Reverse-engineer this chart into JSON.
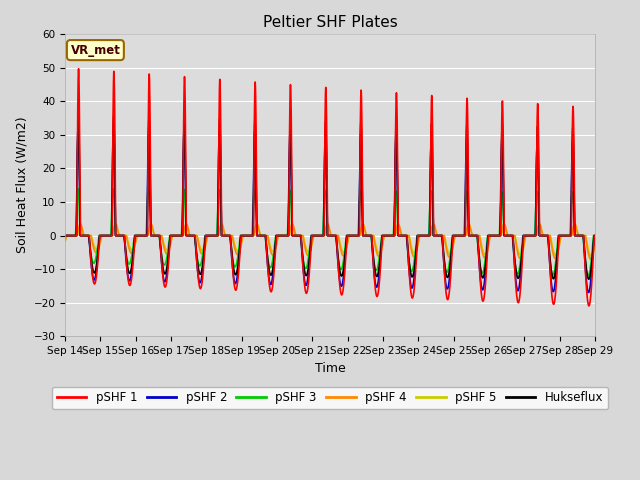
{
  "title": "Peltier SHF Plates",
  "xlabel": "Time",
  "ylabel": "Soil Heat Flux (W/m2)",
  "ylim": [
    -30,
    60
  ],
  "x_tick_labels": [
    "Sep 14",
    "Sep 15",
    "Sep 16",
    "Sep 17",
    "Sep 18",
    "Sep 19",
    "Sep 20",
    "Sep 21",
    "Sep 22",
    "Sep 23",
    "Sep 24",
    "Sep 25",
    "Sep 26",
    "Sep 27",
    "Sep 28",
    "Sep 29"
  ],
  "annotation_text": "VR_met",
  "fig_bg": "#d8d8d8",
  "ax_bg": "#dcdcdc",
  "series": [
    {
      "label": "pSHF 1",
      "color": "#ff0000",
      "lw": 1.2
    },
    {
      "label": "pSHF 2",
      "color": "#0000cc",
      "lw": 1.2
    },
    {
      "label": "pSHF 3",
      "color": "#00cc00",
      "lw": 1.2
    },
    {
      "label": "pSHF 4",
      "color": "#ff8800",
      "lw": 1.2
    },
    {
      "label": "pSHF 5",
      "color": "#cccc00",
      "lw": 1.2
    },
    {
      "label": "Hukseflux",
      "color": "#000000",
      "lw": 1.2
    }
  ],
  "title_fontsize": 11,
  "axis_label_fontsize": 9,
  "tick_fontsize": 7.5
}
